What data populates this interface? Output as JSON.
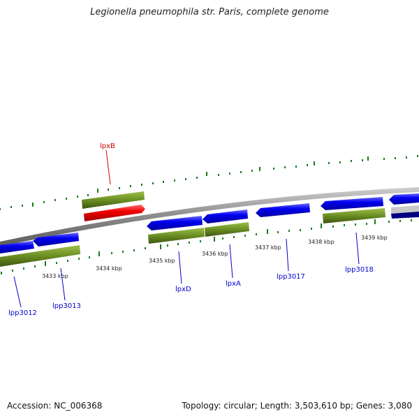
{
  "title": "Legionella pneumophila str. Paris, complete genome",
  "footer": {
    "accession": "Accession: NC_006368",
    "summary": "Topology: circular; Length: 3,503,610 bp; Genes: 3,080"
  },
  "colors": {
    "forward_gene": "#0000e0",
    "reverse_gene": "#0000e0",
    "highlight_gene": "#ee0000",
    "orf_bar": "#6b8e23",
    "backbone": "#888888",
    "tick": "#1a7a1a",
    "gene_label": "#0000cc",
    "highlight_label": "#cc0000"
  },
  "scale": {
    "ticks": [
      "3433 kbp",
      "3434 kbp",
      "3435 kbp",
      "3436 kbp",
      "3437 kbp",
      "3438 kbp",
      "3439 kbp"
    ]
  },
  "genes": [
    {
      "name": "lpp3012"
    },
    {
      "name": "lpp3013"
    },
    {
      "name": "lpxB",
      "highlight": true
    },
    {
      "name": "lpxD"
    },
    {
      "name": "lpxA"
    },
    {
      "name": "lpp3017"
    },
    {
      "name": "lpp3018"
    }
  ]
}
